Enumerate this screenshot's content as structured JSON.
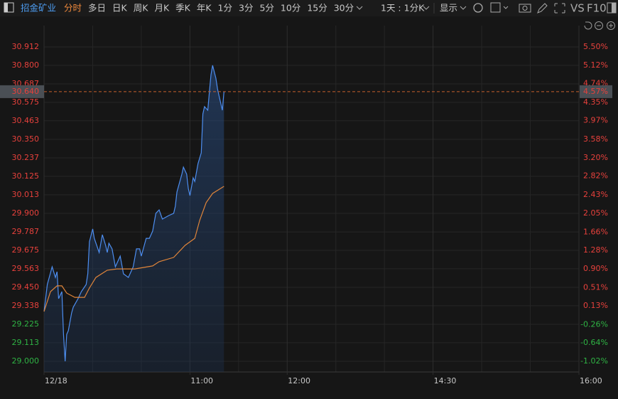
{
  "toolbar": {
    "stock": "招金矿业",
    "periods": [
      "分时",
      "多日",
      "日K",
      "周K",
      "月K",
      "季K",
      "年K",
      "1分",
      "3分",
      "5分",
      "10分",
      "15分",
      "30分"
    ],
    "range": "1天 : 1分K",
    "display": "显示",
    "vs": "VS",
    "f10": "F10"
  },
  "chart_data": {
    "type": "line",
    "xlim": [
      0,
      330
    ],
    "xticks": [
      {
        "value": 0,
        "label": "12/18"
      },
      {
        "value": 90,
        "label": "11:00"
      },
      {
        "value": 150,
        "label": "12:00"
      },
      {
        "value": 240,
        "label": "14:30"
      },
      {
        "value": 330,
        "label": "16:00"
      }
    ],
    "xminorticks": [
      30,
      60,
      120,
      180,
      210,
      270,
      300
    ],
    "ylim": [
      29.0,
      30.912
    ],
    "yticks": [
      {
        "value": 30.912,
        "label": "30.912"
      },
      {
        "value": 30.8,
        "label": "30.800"
      },
      {
        "value": 30.687,
        "label": "30.687"
      },
      {
        "value": 30.575,
        "label": "30.575"
      },
      {
        "value": 30.463,
        "label": "30.463"
      },
      {
        "value": 30.35,
        "label": "30.350"
      },
      {
        "value": 30.237,
        "label": "30.237"
      },
      {
        "value": 30.125,
        "label": "30.125"
      },
      {
        "value": 30.013,
        "label": "30.013"
      },
      {
        "value": 29.9,
        "label": "29.900"
      },
      {
        "value": 29.787,
        "label": "29.787"
      },
      {
        "value": 29.675,
        "label": "29.675"
      },
      {
        "value": 29.563,
        "label": "29.563"
      },
      {
        "value": 29.45,
        "label": "29.450"
      },
      {
        "value": 29.338,
        "label": "29.338"
      },
      {
        "value": 29.225,
        "label": "29.225"
      },
      {
        "value": 29.113,
        "label": "29.113"
      },
      {
        "value": 29.0,
        "label": "29.000"
      }
    ],
    "y2lim": [
      -1.02,
      5.5
    ],
    "y2ticks": [
      {
        "value": 5.5,
        "label": "5.50%"
      },
      {
        "value": 5.12,
        "label": "5.12%"
      },
      {
        "value": 4.74,
        "label": "4.74%"
      },
      {
        "value": 4.35,
        "label": "4.35%"
      },
      {
        "value": 3.97,
        "label": "3.97%"
      },
      {
        "value": 3.58,
        "label": "3.58%"
      },
      {
        "value": 3.2,
        "label": "3.20%"
      },
      {
        "value": 2.82,
        "label": "2.82%"
      },
      {
        "value": 2.43,
        "label": "2.43%"
      },
      {
        "value": 2.05,
        "label": "2.05%"
      },
      {
        "value": 1.66,
        "label": "1.66%"
      },
      {
        "value": 1.28,
        "label": "1.28%"
      },
      {
        "value": 0.9,
        "label": "0.90%"
      },
      {
        "value": 0.51,
        "label": "0.51%"
      },
      {
        "value": 0.13,
        "label": "0.13%"
      },
      {
        "value": -0.26,
        "label": "-0.26%"
      },
      {
        "value": -0.64,
        "label": "-0.64%"
      },
      {
        "value": -1.02,
        "label": "-1.02%"
      }
    ],
    "current_price": {
      "value": 30.64,
      "label": "30.640"
    },
    "current_change": {
      "value": 4.57,
      "label": "4.57%"
    },
    "series": [
      {
        "color": "#4d8ef0",
        "area": true,
        "x": [
          0,
          2,
          5,
          7,
          8,
          9,
          11,
          12,
          13,
          14,
          15,
          17,
          18,
          21,
          23,
          26,
          27,
          28,
          30,
          31,
          34,
          36,
          38,
          39,
          40,
          42,
          44,
          47,
          49,
          52,
          55,
          57,
          59,
          60,
          63,
          65,
          67,
          69,
          71,
          73,
          77,
          80,
          81,
          82,
          85,
          86,
          88,
          89,
          90,
          92,
          93,
          95,
          97,
          98,
          99,
          101,
          102,
          103,
          104,
          106,
          107,
          108,
          110,
          111
        ],
        "values": [
          29.303,
          29.467,
          29.575,
          29.51,
          29.545,
          29.381,
          29.424,
          29.164,
          29.0,
          29.164,
          29.186,
          29.294,
          29.329,
          29.381,
          29.424,
          29.467,
          29.532,
          29.727,
          29.805,
          29.748,
          29.662,
          29.77,
          29.705,
          29.662,
          29.718,
          29.684,
          29.575,
          29.64,
          29.532,
          29.51,
          29.575,
          29.684,
          29.684,
          29.64,
          29.748,
          29.748,
          29.792,
          29.9,
          29.921,
          29.865,
          29.887,
          29.9,
          29.943,
          30.03,
          30.138,
          30.181,
          30.138,
          30.051,
          30.008,
          30.116,
          30.094,
          30.203,
          30.268,
          30.505,
          30.549,
          30.527,
          30.635,
          30.743,
          30.8,
          30.722,
          30.657,
          30.614,
          30.527,
          30.64
        ]
      },
      {
        "color": "#e0853a",
        "area": false,
        "x": [
          0,
          4,
          8,
          11,
          14,
          19,
          25,
          28,
          32,
          39,
          45,
          56,
          67,
          71,
          80,
          87,
          93,
          96,
          100,
          104,
          111
        ],
        "values": [
          29.303,
          29.424,
          29.459,
          29.459,
          29.415,
          29.389,
          29.389,
          29.446,
          29.51,
          29.554,
          29.562,
          29.562,
          29.58,
          29.606,
          29.632,
          29.705,
          29.748,
          29.857,
          29.965,
          30.021,
          30.064
        ]
      }
    ]
  }
}
